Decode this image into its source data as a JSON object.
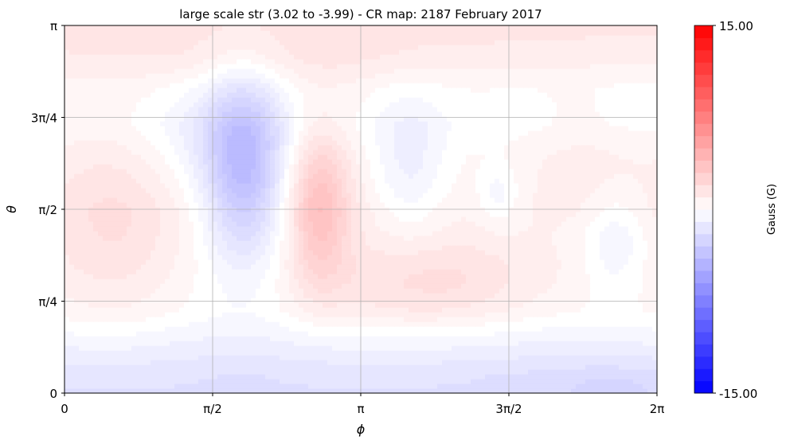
{
  "chart_data": {
    "type": "heatmap",
    "title": "large scale str (3.02 to -3.99) - CR map: 2187 February 2017",
    "xlabel": "ϕ",
    "ylabel": "θ",
    "xlim": [
      0,
      6.2832
    ],
    "ylim": [
      0,
      3.1416
    ],
    "x_ticks": [
      {
        "value": 0,
        "label": "0"
      },
      {
        "value": 1.5708,
        "label": "π/2"
      },
      {
        "value": 3.1416,
        "label": "π"
      },
      {
        "value": 4.7124,
        "label": "3π/2"
      },
      {
        "value": 6.2832,
        "label": "2π"
      }
    ],
    "y_ticks": [
      {
        "value": 0,
        "label": "0"
      },
      {
        "value": 0.7854,
        "label": "π/4"
      },
      {
        "value": 1.5708,
        "label": "π/2"
      },
      {
        "value": 2.3562,
        "label": "3π/4"
      },
      {
        "value": 3.1416,
        "label": "π"
      }
    ],
    "grid": true,
    "colorbar": {
      "label": "Gauss (G)",
      "min": -15,
      "max": 15,
      "min_label": "-15.00",
      "max_label": "15.00",
      "colormap": "bwr",
      "low_color": "#0000ff",
      "mid_color": "#ffffff",
      "high_color": "#ff0000"
    },
    "field_range": {
      "max": 3.02,
      "min": -3.99
    },
    "background_field": [
      {
        "theta": 3.14,
        "value": 1.4
      },
      {
        "theta": 2.9,
        "value": 1.1
      },
      {
        "theta": 2.6,
        "value": 0.3
      },
      {
        "theta": 2.3,
        "value": 0.1
      },
      {
        "theta": 2.0,
        "value": 0.5
      },
      {
        "theta": 1.57,
        "value": 0.8
      },
      {
        "theta": 1.1,
        "value": 0.6
      },
      {
        "theta": 0.7,
        "value": 0.2
      },
      {
        "theta": 0.4,
        "value": -0.9
      },
      {
        "theta": 0.15,
        "value": -1.7
      },
      {
        "theta": 0.0,
        "value": -1.8
      }
    ],
    "field_features": [
      {
        "phi": 1.9,
        "theta": 1.9,
        "sigma_phi": 0.3,
        "sigma_theta": 0.55,
        "value": -4.0
      },
      {
        "phi": 2.7,
        "theta": 1.6,
        "sigma_phi": 0.22,
        "sigma_theta": 0.45,
        "value": 3.0
      },
      {
        "phi": 3.65,
        "theta": 1.95,
        "sigma_phi": 0.3,
        "sigma_theta": 0.45,
        "value": -1.6
      },
      {
        "phi": 4.6,
        "theta": 1.7,
        "sigma_phi": 0.15,
        "sigma_theta": 0.18,
        "value": -1.0
      },
      {
        "phi": 5.85,
        "theta": 1.3,
        "sigma_phi": 0.25,
        "sigma_theta": 0.3,
        "value": -1.4
      },
      {
        "phi": 0.55,
        "theta": 1.45,
        "sigma_phi": 0.45,
        "sigma_theta": 0.55,
        "value": 0.9
      },
      {
        "phi": 4.2,
        "theta": 0.95,
        "sigma_phi": 0.75,
        "sigma_theta": 0.28,
        "value": 1.1
      },
      {
        "phi": 5.4,
        "theta": 1.95,
        "sigma_phi": 0.45,
        "sigma_theta": 0.35,
        "value": 0.6
      },
      {
        "phi": 1.55,
        "theta": 2.2,
        "sigma_phi": 0.55,
        "sigma_theta": 0.3,
        "value": -0.8
      },
      {
        "phi": 3.3,
        "theta": 0.9,
        "sigma_phi": 0.8,
        "sigma_theta": 0.25,
        "value": 0.5
      },
      {
        "phi": 6.1,
        "theta": 2.6,
        "sigma_phi": 0.35,
        "sigma_theta": 0.3,
        "value": -0.3
      },
      {
        "phi": 2.3,
        "theta": 2.85,
        "sigma_phi": 1.2,
        "sigma_theta": 0.2,
        "value": 0.4
      },
      {
        "phi": 5.8,
        "theta": 0.05,
        "sigma_phi": 0.6,
        "sigma_theta": 0.15,
        "value": -0.6
      }
    ]
  }
}
